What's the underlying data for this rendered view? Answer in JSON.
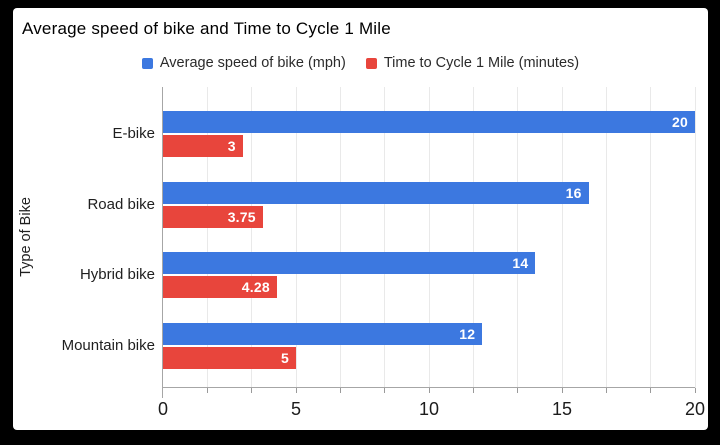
{
  "chart_data": {
    "type": "bar",
    "orientation": "horizontal",
    "title": "Average speed of bike and Time to Cycle 1 Mile",
    "categories": [
      "E-bike",
      "Road bike",
      "Hybrid bike",
      "Mountain bike"
    ],
    "series": [
      {
        "name": "Average speed of bike (mph)",
        "color": "#3c78e0",
        "values": [
          20,
          16,
          14,
          12
        ],
        "value_labels": [
          "20",
          "16",
          "14",
          "12"
        ]
      },
      {
        "name": "Time to Cycle 1 Mile (minutes)",
        "color": "#e8453c",
        "values": [
          3,
          3.75,
          4.28,
          5
        ],
        "value_labels": [
          "3",
          "3.75",
          "4.28",
          "5"
        ]
      }
    ],
    "xlabel": "",
    "ylabel": "Type of Bike",
    "xlim": [
      0,
      20
    ],
    "xticks": [
      0,
      5,
      10,
      15,
      20
    ],
    "xtick_labels": [
      "0",
      "5",
      "10",
      "15",
      "20"
    ],
    "minor_grid_divisions_per_major": 3,
    "grid": true,
    "legend_position": "top",
    "value_labels_shown": true
  },
  "colors": {
    "frame_background": "#000000",
    "card_background": "#ffffff",
    "gridline": "#e9e9e9",
    "axis_line": "#a6a6a6",
    "tick_mark": "#9a9a9a",
    "title_text": "#000000",
    "label_text": "#1f1f1f",
    "bar_label_text": "#ffffff"
  }
}
